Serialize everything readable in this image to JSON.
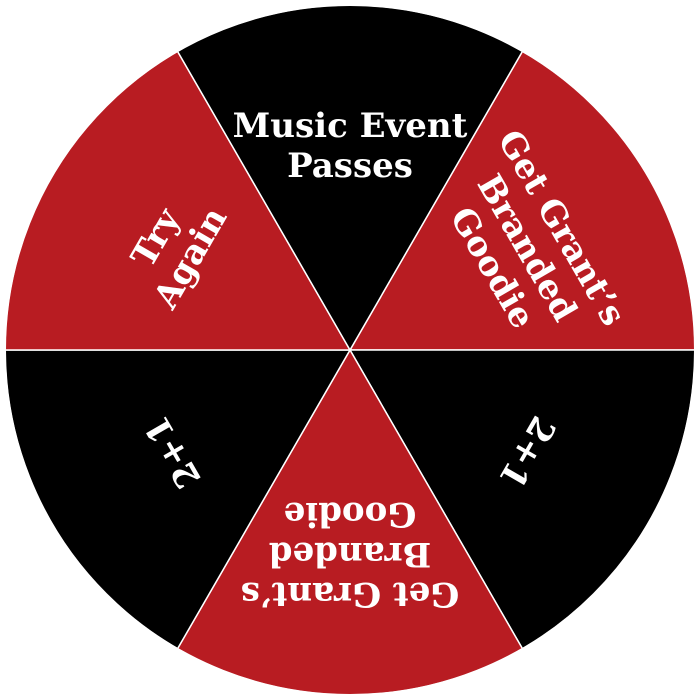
{
  "wheel": {
    "colors": {
      "red": "#b81c22",
      "black": "#000000",
      "divider": "#ffffff"
    },
    "segments": [
      {
        "label_lines": [
          "Get Grant’s",
          "Branded",
          "Goodie"
        ],
        "color": "#b81c22"
      },
      {
        "label_lines": [
          "2+1"
        ],
        "color": "#000000"
      },
      {
        "label_lines": [
          "Get Grant’s",
          "Branded",
          "Goodie"
        ],
        "color": "#b81c22"
      },
      {
        "label_lines": [
          "2+1"
        ],
        "color": "#000000"
      },
      {
        "label_lines": [
          "Try",
          "Again"
        ],
        "color": "#b81c22"
      },
      {
        "label_lines": [
          "Music Event",
          "Passes"
        ],
        "color": "#000000"
      }
    ]
  }
}
